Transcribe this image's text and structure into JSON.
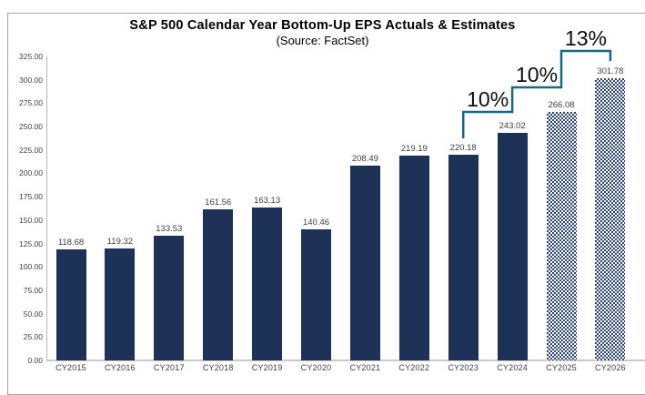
{
  "chart": {
    "title": "S&P 500 Calendar Year Bottom-Up EPS Actuals & Estimates",
    "subtitle": "(Source: FactSet)"
  },
  "chart_data": {
    "type": "bar",
    "title": "S&P 500 Calendar Year Bottom-Up EPS Actuals & Estimates",
    "subtitle": "(Source: FactSet)",
    "categories": [
      "CY2015",
      "CY2016",
      "CY2017",
      "CY2018",
      "CY2019",
      "CY2020",
      "CY2021",
      "CY2022",
      "CY2023",
      "CY2024",
      "CY2025",
      "CY2026"
    ],
    "values": [
      118.68,
      119.32,
      133.53,
      161.56,
      163.13,
      140.46,
      208.49,
      219.19,
      220.18,
      243.02,
      266.08,
      301.78
    ],
    "bar_labels": [
      "118.68",
      "119.32",
      "133.53",
      "161.56",
      "163.13",
      "140.46",
      "208.49",
      "219.19",
      "220.18",
      "243.02",
      "266.08",
      "301.78"
    ],
    "estimate_years": [
      "CY2025",
      "CY2026"
    ],
    "ylim": [
      0,
      325
    ],
    "ytick_step": 25,
    "ytick_labels": [
      "0.00",
      "25.00",
      "50.00",
      "75.00",
      "100.00",
      "125.00",
      "150.00",
      "175.00",
      "200.00",
      "225.00",
      "250.00",
      "275.00",
      "300.00",
      "325.00"
    ],
    "grid": false,
    "legend": null,
    "annotations": [
      {
        "label": "10%",
        "from": "CY2023",
        "to": "CY2024"
      },
      {
        "label": "10%",
        "from": "CY2024",
        "to": "CY2025"
      },
      {
        "label": "13%",
        "from": "CY2025",
        "to": "CY2026"
      }
    ],
    "colors": {
      "bar_solid": "#1e3157",
      "bar_estimate_hatch": "#2c4272",
      "bracket": "#176882",
      "value_label": "#3f3f3f",
      "axis_line": "#b3b3b3",
      "border": "#a6a6a6"
    }
  }
}
